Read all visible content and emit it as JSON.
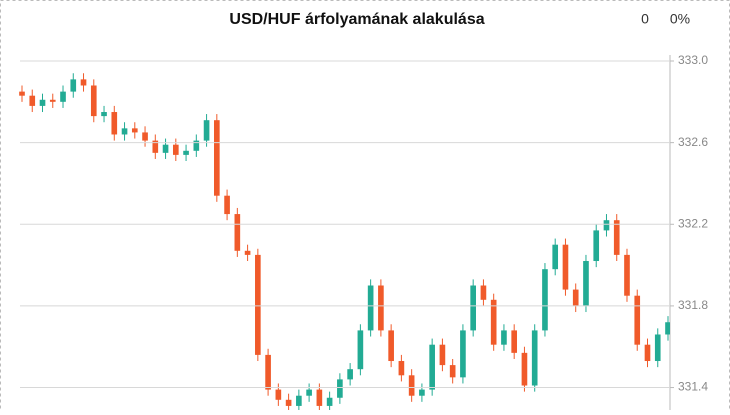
{
  "chart_data": {
    "type": "candlestick",
    "title": "USD/HUF árfolyamának alakulása",
    "annotations": [
      "0",
      "0%"
    ],
    "up_color": "#22ab94",
    "down_color": "#f05a2a",
    "grid": true,
    "ylim": [
      331.29,
      333.0
    ],
    "yticks": [
      {
        "value": 333.0,
        "label": "333.0"
      },
      {
        "value": 332.6,
        "label": "332.6"
      },
      {
        "value": 332.2,
        "label": "332.2"
      },
      {
        "value": 331.8,
        "label": "331.8"
      },
      {
        "value": 331.4,
        "label": "331.4"
      }
    ],
    "open": [
      332.85,
      332.83,
      332.78,
      332.81,
      332.8,
      332.85,
      332.91,
      332.88,
      332.73,
      332.75,
      332.64,
      332.67,
      332.65,
      332.61,
      332.55,
      332.59,
      332.54,
      332.56,
      332.61,
      332.71,
      332.34,
      332.25,
      332.07,
      332.05,
      331.56,
      331.39,
      331.34,
      331.31,
      331.36,
      331.39,
      331.31,
      331.35,
      331.44,
      331.49,
      331.68,
      331.9,
      331.68,
      331.53,
      331.46,
      331.36,
      331.39,
      331.61,
      331.51,
      331.45,
      331.68,
      331.9,
      331.83,
      331.61,
      331.68,
      331.57,
      331.41,
      331.68,
      331.98,
      332.1,
      331.88,
      331.8,
      332.02,
      332.17,
      332.22,
      332.05,
      331.85,
      331.61,
      331.53,
      331.66
    ],
    "high": [
      332.88,
      332.86,
      332.84,
      332.84,
      332.88,
      332.94,
      332.94,
      332.91,
      332.78,
      332.78,
      332.7,
      332.7,
      332.68,
      332.64,
      332.62,
      332.62,
      332.59,
      332.64,
      332.74,
      332.74,
      332.37,
      332.28,
      332.1,
      332.08,
      331.59,
      331.42,
      331.37,
      331.39,
      331.42,
      331.42,
      331.38,
      331.47,
      331.52,
      331.71,
      331.93,
      331.93,
      331.71,
      331.56,
      331.49,
      331.42,
      331.64,
      331.64,
      331.54,
      331.71,
      331.93,
      331.93,
      331.86,
      331.71,
      331.71,
      331.6,
      331.71,
      332.01,
      332.13,
      332.13,
      331.91,
      332.05,
      332.2,
      332.25,
      332.25,
      332.08,
      331.88,
      331.64,
      331.69,
      331.75
    ],
    "low": [
      332.8,
      332.75,
      332.75,
      332.77,
      332.77,
      332.82,
      332.85,
      332.7,
      332.7,
      332.61,
      332.61,
      332.62,
      332.58,
      332.52,
      332.52,
      332.51,
      332.51,
      332.53,
      332.58,
      332.31,
      332.22,
      332.04,
      332.02,
      331.53,
      331.36,
      331.31,
      331.28,
      331.28,
      331.33,
      331.28,
      331.28,
      331.32,
      331.41,
      331.46,
      331.65,
      331.65,
      331.5,
      331.43,
      331.33,
      331.33,
      331.36,
      331.48,
      331.42,
      331.42,
      331.65,
      331.8,
      331.58,
      331.58,
      331.54,
      331.38,
      331.38,
      331.65,
      331.95,
      331.85,
      331.77,
      331.77,
      331.99,
      332.14,
      332.02,
      331.82,
      331.58,
      331.5,
      331.5,
      331.63
    ],
    "close": [
      332.83,
      332.78,
      332.81,
      332.8,
      332.85,
      332.91,
      332.88,
      332.73,
      332.75,
      332.64,
      332.67,
      332.65,
      332.61,
      332.55,
      332.59,
      332.54,
      332.56,
      332.61,
      332.71,
      332.34,
      332.25,
      332.07,
      332.05,
      331.56,
      331.39,
      331.34,
      331.31,
      331.36,
      331.39,
      331.31,
      331.35,
      331.44,
      331.49,
      331.68,
      331.9,
      331.68,
      331.53,
      331.46,
      331.36,
      331.39,
      331.61,
      331.51,
      331.45,
      331.68,
      331.9,
      331.83,
      331.61,
      331.68,
      331.57,
      331.41,
      331.68,
      331.98,
      332.1,
      331.88,
      331.8,
      332.02,
      332.17,
      332.22,
      332.05,
      331.85,
      331.61,
      331.53,
      331.66,
      331.72
    ]
  }
}
